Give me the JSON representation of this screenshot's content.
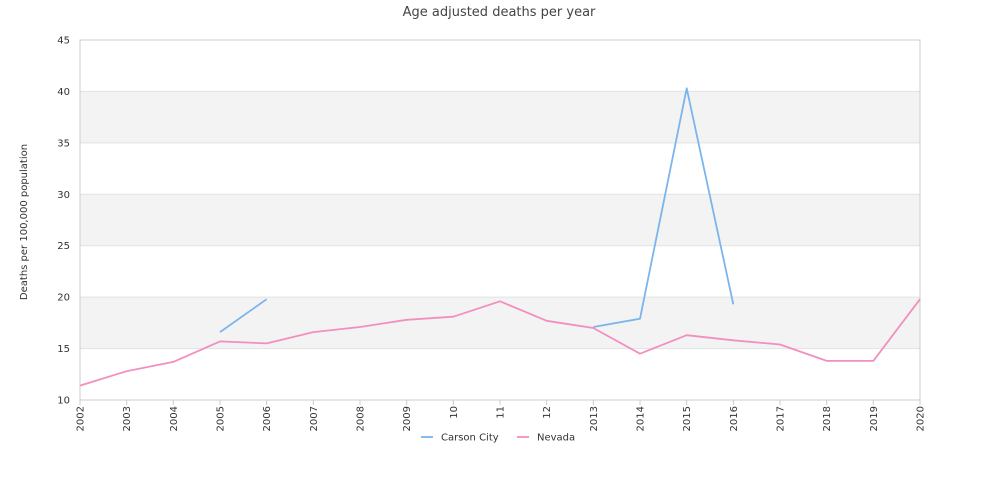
{
  "chart_data": {
    "type": "line",
    "title": "Age adjusted deaths per year",
    "ylabel": "Deaths per 100,000 population",
    "xlabel": "",
    "categories": [
      "2002",
      "2003",
      "2004",
      "2005",
      "2006",
      "2007",
      "2008",
      "2009",
      "10",
      "11",
      "12",
      "2013",
      "2014",
      "2015",
      "2016",
      "2017",
      "2018",
      "2019",
      "2020"
    ],
    "ylim": [
      10,
      45
    ],
    "yticks": [
      10,
      15,
      20,
      25,
      30,
      35,
      40,
      45
    ],
    "grid": true,
    "legend_position": "bottom",
    "series": [
      {
        "name": "Carson City",
        "color": "#7cb5ec",
        "values": [
          null,
          null,
          null,
          16.6,
          19.8,
          null,
          null,
          null,
          null,
          null,
          null,
          17.1,
          17.9,
          40.3,
          19.3,
          null,
          null,
          null,
          null
        ]
      },
      {
        "name": "Nevada",
        "color": "#f28fbf",
        "values": [
          11.4,
          12.8,
          13.7,
          15.7,
          15.5,
          16.6,
          17.1,
          17.8,
          18.1,
          19.6,
          17.7,
          17.0,
          14.5,
          16.3,
          15.8,
          15.4,
          13.8,
          13.8,
          19.8
        ]
      }
    ]
  },
  "colors": {
    "band": "#f3f3f3",
    "grid": "#e3e3e3",
    "axis": "#cccccc"
  }
}
